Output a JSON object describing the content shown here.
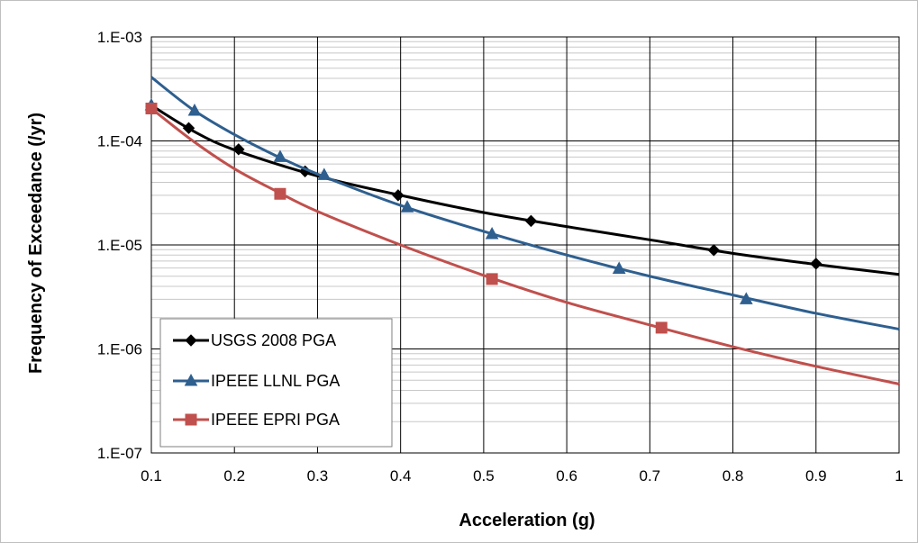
{
  "chart_data": {
    "type": "line",
    "title": "",
    "xlabel": "Acceleration (g)",
    "ylabel": "Frequency of Exceedance (/yr)",
    "xlim": [
      0.1,
      1
    ],
    "ylim": [
      1e-07,
      0.001
    ],
    "yscale": "log",
    "grid": true,
    "legend_position": "bottom-left",
    "x_tick_labels": [
      "0.1",
      "0.2",
      "0.3",
      "0.4",
      "0.5",
      "0.6",
      "0.7",
      "0.8",
      "0.9",
      "1"
    ],
    "y_tick_labels": [
      "1.E-07",
      "1.E-06",
      "1.E-05",
      "1.E-04",
      "1.E-03"
    ],
    "series": [
      {
        "name": "USGS 2008 PGA",
        "color": "#000000",
        "marker": "diamond",
        "x": [
          0.1,
          0.15,
          0.2,
          0.3,
          0.4,
          0.5,
          0.6,
          0.7,
          0.8,
          0.9,
          1.0
        ],
        "y": [
          0.00022,
          0.000125,
          8.2e-05,
          4.6e-05,
          3e-05,
          2.05e-05,
          1.5e-05,
          1.12e-05,
          8.3e-06,
          6.5e-06,
          5.2e-06
        ],
        "marker_x": [
          0.1,
          0.145,
          0.205,
          0.285,
          0.397,
          0.557,
          0.777,
          0.9
        ],
        "marker_y": [
          0.000215,
          0.000133,
          8.3e-05,
          5.1e-05,
          3e-05,
          1.7e-05,
          8.9e-06,
          6.6e-06
        ]
      },
      {
        "name": "IPEEE LLNL PGA",
        "color": "#2e5f8f",
        "marker": "triangle",
        "x": [
          0.1,
          0.15,
          0.2,
          0.25,
          0.3,
          0.4,
          0.5,
          0.6,
          0.7,
          0.8,
          0.9,
          1.0
        ],
        "y": [
          0.00041,
          0.0002,
          0.000115,
          7.2e-05,
          4.8e-05,
          2.4e-05,
          1.35e-05,
          8e-06,
          5e-06,
          3.3e-06,
          2.2e-06,
          1.55e-06
        ],
        "marker_x": [
          0.1,
          0.152,
          0.255,
          0.308,
          0.408,
          0.51,
          0.663,
          0.816
        ],
        "marker_y": [
          0.00022,
          0.000195,
          7e-05,
          4.7e-05,
          2.3e-05,
          1.27e-05,
          5.9e-06,
          3e-06
        ]
      },
      {
        "name": "IPEEE EPRI PGA",
        "color": "#c0504d",
        "marker": "square",
        "x": [
          0.1,
          0.15,
          0.2,
          0.25,
          0.3,
          0.4,
          0.5,
          0.6,
          0.7,
          0.8,
          0.9,
          1.0
        ],
        "y": [
          0.000205,
          0.0001,
          5.4e-05,
          3.3e-05,
          2.1e-05,
          1e-05,
          5.1e-06,
          2.8e-06,
          1.7e-06,
          1.05e-06,
          6.8e-07,
          4.6e-07
        ],
        "marker_x": [
          0.1,
          0.255,
          0.51,
          0.714
        ],
        "marker_y": [
          0.000205,
          3.1e-05,
          4.7e-06,
          1.6e-06
        ]
      }
    ]
  }
}
